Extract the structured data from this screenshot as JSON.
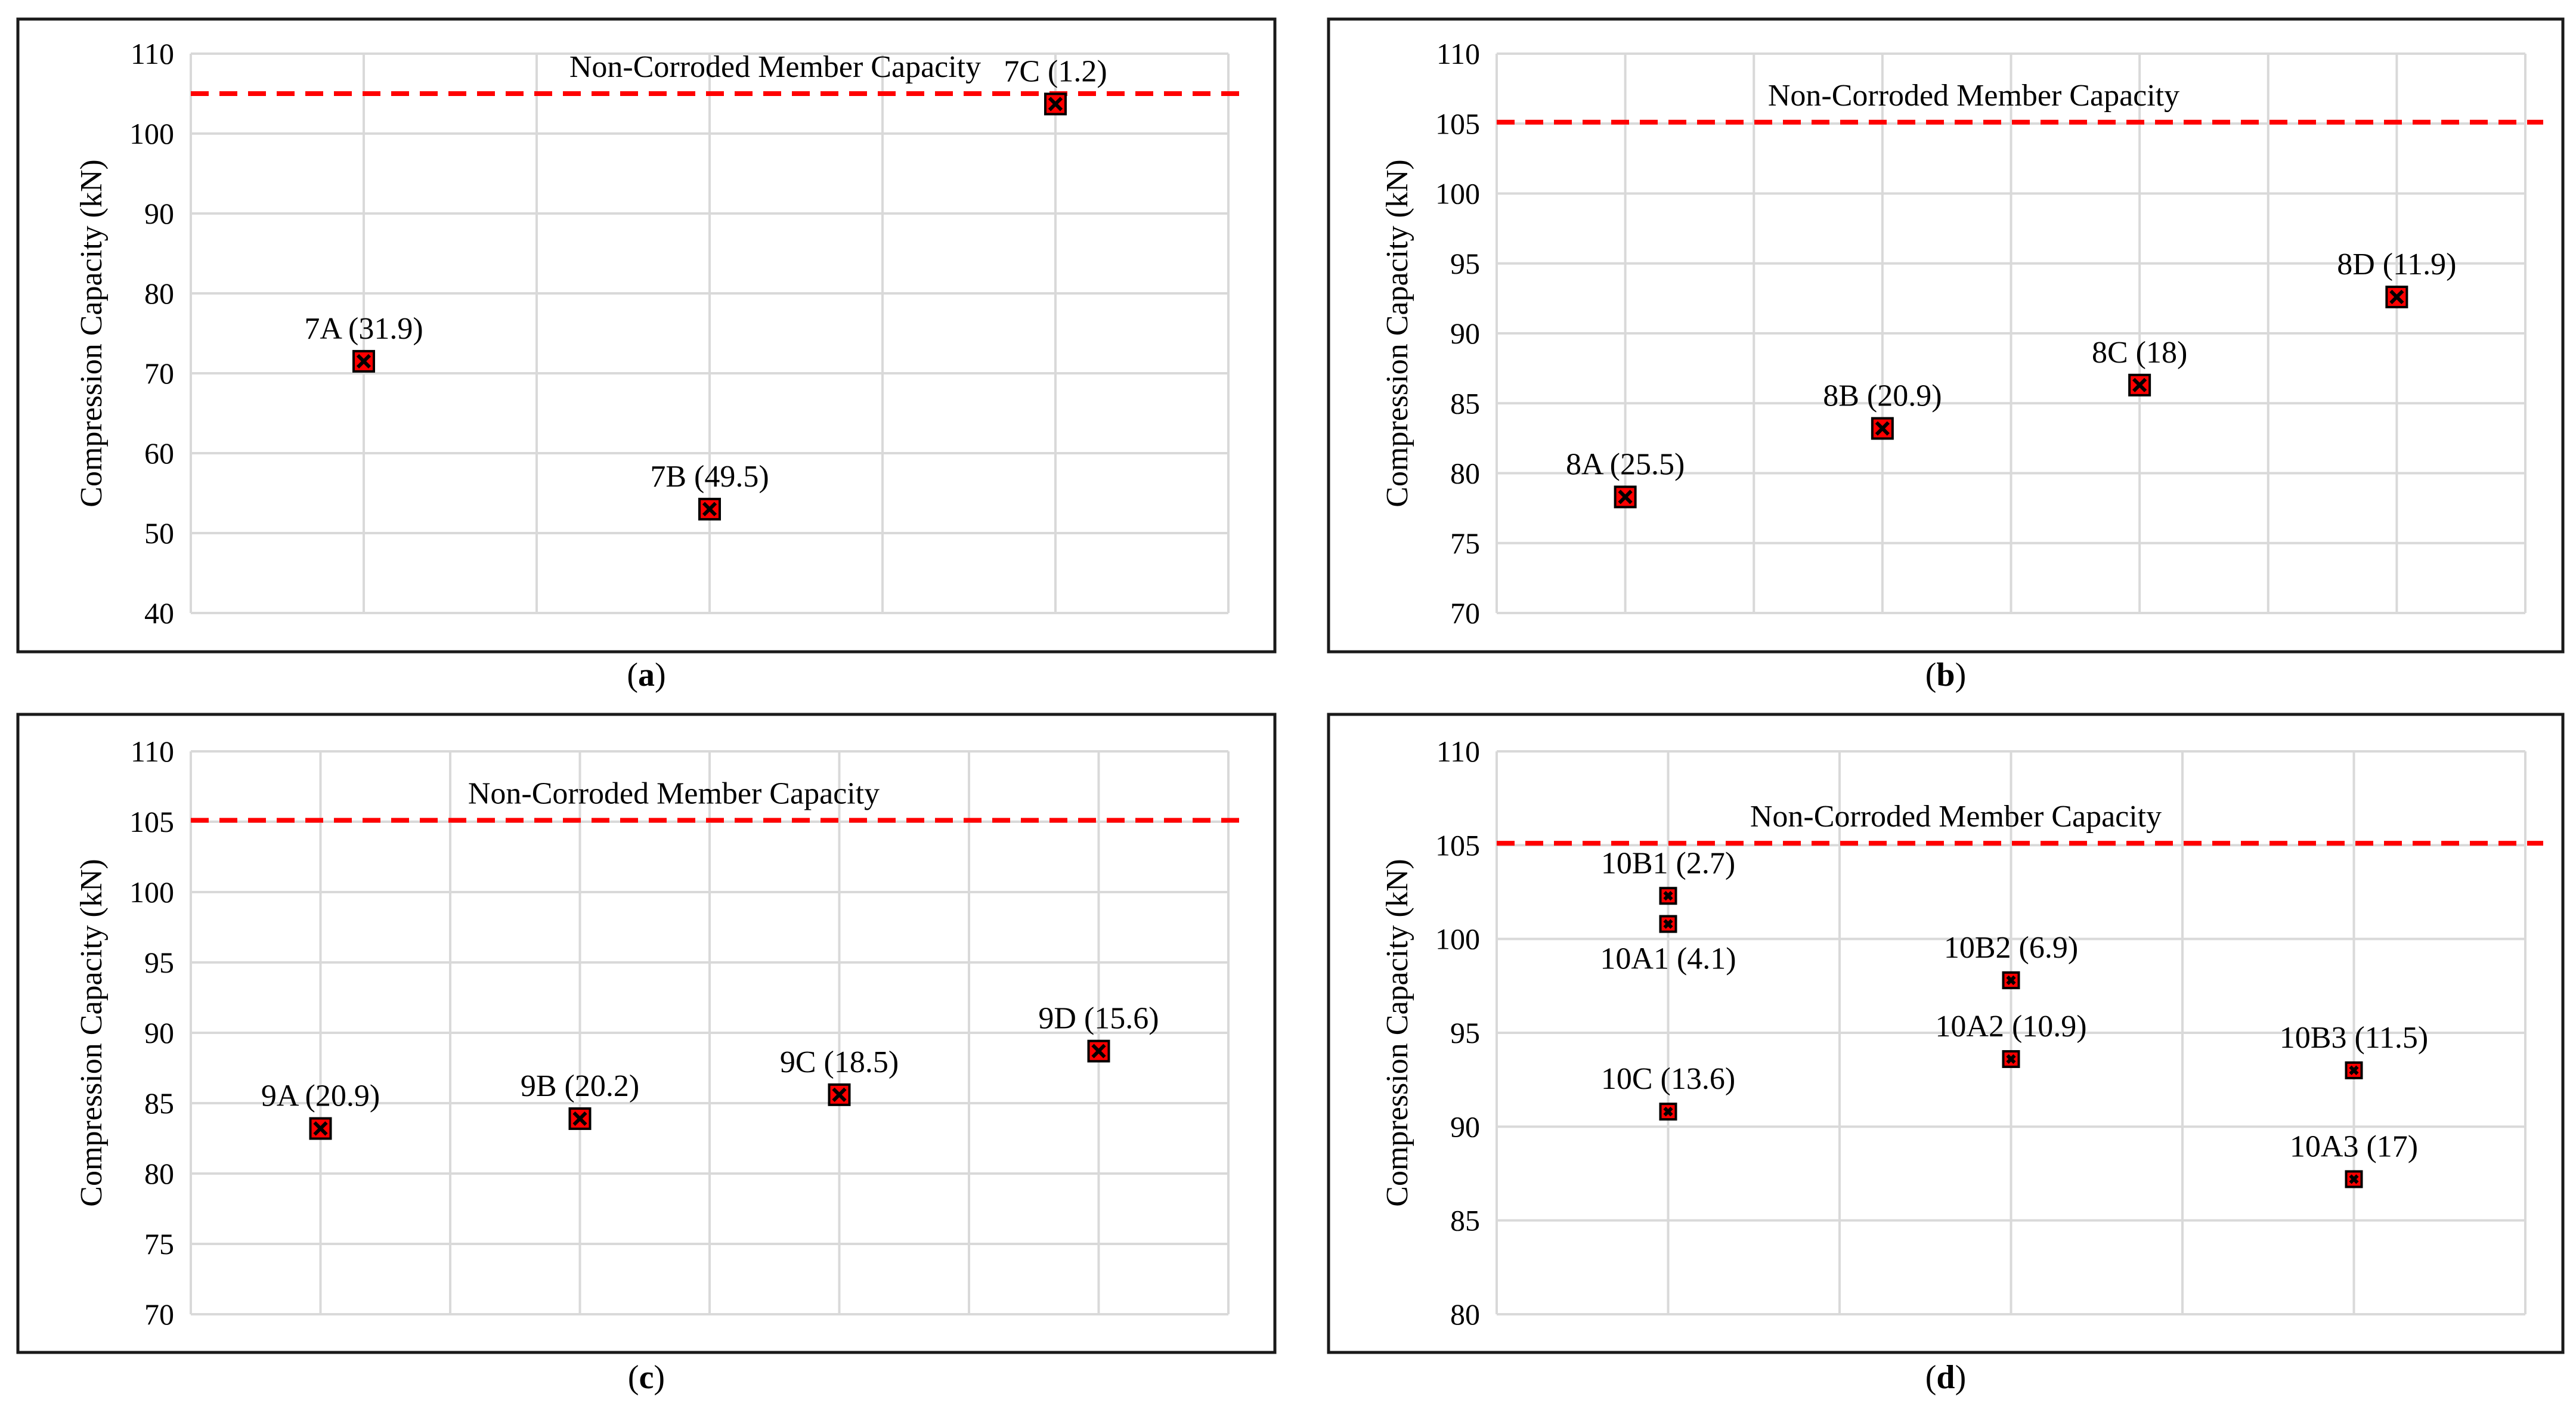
{
  "colors": {
    "frame": "#1a1a1a",
    "grid": "#d9d9d9",
    "reference_line": "#ff0000",
    "marker_fill": "#ff0000",
    "marker_edge": "#000000",
    "text": "#000000"
  },
  "chart_data": [
    {
      "type": "scatter",
      "panel_label": "a",
      "ylabel": "Compression Capacity (kN)",
      "xlabel": "",
      "ylim": [
        40,
        110
      ],
      "yticks": [
        40,
        50,
        60,
        70,
        80,
        90,
        100,
        110
      ],
      "x_slots": 6,
      "reference_line": {
        "value": 105,
        "label": "Non-Corroded Member Capacity"
      },
      "points": [
        {
          "label": "7A (31.9)",
          "x": 1,
          "y": 71.5
        },
        {
          "label": "7B (49.5)",
          "x": 3,
          "y": 53
        },
        {
          "label": "7C (1.2)",
          "x": 5,
          "y": 103.7
        }
      ]
    },
    {
      "type": "scatter",
      "panel_label": "b",
      "ylabel": "Compression Capacity (kN)",
      "xlabel": "",
      "ylim": [
        70,
        110
      ],
      "yticks": [
        70,
        75,
        80,
        85,
        90,
        95,
        100,
        105,
        110
      ],
      "x_slots": 8,
      "reference_line": {
        "value": 105.1,
        "label": "Non-Corroded Member Capacity"
      },
      "points": [
        {
          "label": "8A (25.5)",
          "x": 1,
          "y": 78.3
        },
        {
          "label": "8B (20.9)",
          "x": 3,
          "y": 83.2
        },
        {
          "label": "8C (18)",
          "x": 5,
          "y": 86.3
        },
        {
          "label": "8D (11.9)",
          "x": 7,
          "y": 92.6
        }
      ]
    },
    {
      "type": "scatter",
      "panel_label": "c",
      "ylabel": "Compression Capacity (kN)",
      "xlabel": "",
      "ylim": [
        70,
        110
      ],
      "yticks": [
        70,
        75,
        80,
        85,
        90,
        95,
        100,
        105,
        110
      ],
      "x_slots": 8,
      "reference_line": {
        "value": 105.1,
        "label": "Non-Corroded Member Capacity"
      },
      "points": [
        {
          "label": "9A (20.9)",
          "x": 1,
          "y": 83.2
        },
        {
          "label": "9B (20.2)",
          "x": 3,
          "y": 83.9
        },
        {
          "label": "9C (18.5)",
          "x": 5,
          "y": 85.6
        },
        {
          "label": "9D (15.6)",
          "x": 7,
          "y": 88.7
        }
      ]
    },
    {
      "type": "scatter",
      "panel_label": "d",
      "ylabel": "Compression Capacity (kN)",
      "xlabel": "",
      "ylim": [
        80,
        110
      ],
      "yticks": [
        80,
        85,
        90,
        95,
        100,
        105,
        110
      ],
      "x_slots": 6,
      "reference_line": {
        "value": 105.1,
        "label": "Non-Corroded Member Capacity"
      },
      "points": [
        {
          "label": "10B1 (2.7)",
          "x": 1,
          "y": 102.3,
          "label_pos": "above"
        },
        {
          "label": "10A1 (4.1)",
          "x": 1,
          "y": 100.8,
          "label_pos": "below"
        },
        {
          "label": "10C (13.6)",
          "x": 1,
          "y": 90.8,
          "label_pos": "above"
        },
        {
          "label": "10B2 (6.9)",
          "x": 3,
          "y": 97.8,
          "label_pos": "above"
        },
        {
          "label": "10A2 (10.9)",
          "x": 3,
          "y": 93.6,
          "label_pos": "above"
        },
        {
          "label": "10B3 (11.5)",
          "x": 5,
          "y": 93,
          "label_pos": "above"
        },
        {
          "label": "10A3 (17)",
          "x": 5,
          "y": 87.2,
          "label_pos": "above"
        }
      ]
    }
  ]
}
